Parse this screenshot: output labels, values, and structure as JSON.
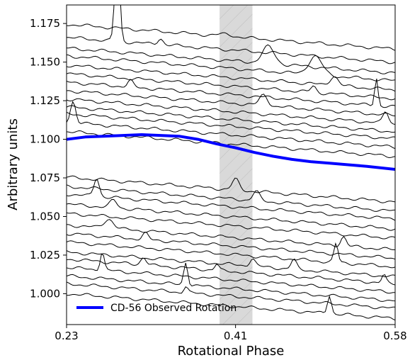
{
  "chart_data": {
    "type": "line",
    "xlabel": "Rotational Phase",
    "ylabel": "Arbitrary units",
    "xlim": [
      0.23,
      0.58
    ],
    "ylim": [
      0.98,
      1.187
    ],
    "x_ticks": [
      "0.23",
      "0.41",
      "0.58"
    ],
    "x_tick_values": [
      0.23,
      0.41,
      0.58
    ],
    "y_ticks": [
      "1.000",
      "1.025",
      "1.050",
      "1.075",
      "1.100",
      "1.125",
      "1.150",
      "1.175"
    ],
    "y_tick_values": [
      1.0,
      1.025,
      1.05,
      1.075,
      1.1,
      1.125,
      1.15,
      1.175
    ],
    "shaded_region": {
      "x": [
        0.393,
        0.428
      ],
      "color": "#d9d9d9",
      "hatch": "diagonal"
    },
    "highlight_series": {
      "name": "CD-56 Observed Rotation",
      "color": "#0000ff",
      "x": [
        0.23,
        0.25,
        0.27,
        0.29,
        0.31,
        0.33,
        0.35,
        0.37,
        0.39,
        0.41,
        0.43,
        0.45,
        0.47,
        0.49,
        0.51,
        0.53,
        0.55,
        0.58
      ],
      "y": [
        1.1,
        1.1015,
        1.102,
        1.1025,
        1.103,
        1.1025,
        1.102,
        1.1,
        1.097,
        1.0945,
        1.0915,
        1.089,
        1.087,
        1.0855,
        1.0845,
        1.0835,
        1.0825,
        1.0805
      ]
    },
    "background_curves": {
      "color": "#000000",
      "offsets": [
        1.1745,
        1.166,
        1.159,
        1.154,
        1.148,
        1.1425,
        1.137,
        1.1315,
        1.126,
        1.121,
        1.1165,
        1.111,
        1.105,
        1.0755,
        1.0695,
        1.0645,
        1.058,
        1.052,
        1.0445,
        1.039,
        1.0335,
        1.027,
        1.0225,
        1.017,
        1.0115,
        1.0065,
        1.0
      ],
      "slope": 0.046,
      "features": [
        {
          "curve": 0,
          "x": 0.4,
          "h": 0.0015,
          "w": 0.01
        },
        {
          "curve": 1,
          "x": 0.284,
          "h": 0.062,
          "w": 0.0035
        },
        {
          "curve": 1,
          "x": 0.33,
          "h": 0.004,
          "w": 0.004
        },
        {
          "curve": 2,
          "x": 0.445,
          "h": 0.011,
          "w": 0.009
        },
        {
          "curve": 3,
          "x": 0.495,
          "h": 0.012,
          "w": 0.01
        },
        {
          "curve": 4,
          "x": 0.515,
          "h": 0.006,
          "w": 0.006
        },
        {
          "curve": 5,
          "x": 0.493,
          "h": 0.004,
          "w": 0.004
        },
        {
          "curve": 6,
          "x": 0.298,
          "h": 0.004,
          "w": 0.004
        },
        {
          "curve": 6,
          "x": 0.56,
          "h": 0.018,
          "w": 0.0025
        },
        {
          "curve": 7,
          "x": 0.44,
          "h": 0.007,
          "w": 0.006
        },
        {
          "curve": 8,
          "x": 0.57,
          "h": 0.008,
          "w": 0.004
        },
        {
          "curve": 11,
          "x": 0.237,
          "h": 0.014,
          "w": 0.004
        },
        {
          "curve": 13,
          "x": 0.41,
          "h": 0.007,
          "w": 0.005
        },
        {
          "curve": 14,
          "x": 0.432,
          "h": 0.006,
          "w": 0.005
        },
        {
          "curve": 15,
          "x": 0.262,
          "h": 0.012,
          "w": 0.004
        },
        {
          "curve": 16,
          "x": 0.28,
          "h": 0.005,
          "w": 0.005
        },
        {
          "curve": 18,
          "x": 0.275,
          "h": 0.006,
          "w": 0.007
        },
        {
          "curve": 18,
          "x": 0.525,
          "h": 0.006,
          "w": 0.004
        },
        {
          "curve": 19,
          "x": 0.314,
          "h": 0.004,
          "w": 0.004
        },
        {
          "curve": 20,
          "x": 0.517,
          "h": 0.012,
          "w": 0.003
        },
        {
          "curve": 21,
          "x": 0.428,
          "h": 0.005,
          "w": 0.004
        },
        {
          "curve": 21,
          "x": 0.472,
          "h": 0.006,
          "w": 0.004
        },
        {
          "curve": 22,
          "x": 0.312,
          "h": 0.005,
          "w": 0.004
        },
        {
          "curve": 22,
          "x": 0.39,
          "h": 0.004,
          "w": 0.003
        },
        {
          "curve": 22,
          "x": 0.568,
          "h": 0.005,
          "w": 0.003
        },
        {
          "curve": 23,
          "x": 0.268,
          "h": 0.012,
          "w": 0.003
        },
        {
          "curve": 24,
          "x": 0.357,
          "h": 0.015,
          "w": 0.003
        },
        {
          "curve": 25,
          "x": 0.357,
          "h": 0.004,
          "w": 0.003
        },
        {
          "curve": 26,
          "x": 0.51,
          "h": 0.012,
          "w": 0.003
        }
      ]
    },
    "grid": false,
    "legend": {
      "position": "bottom-left",
      "entries": [
        "CD-56 Observed Rotation"
      ]
    }
  }
}
